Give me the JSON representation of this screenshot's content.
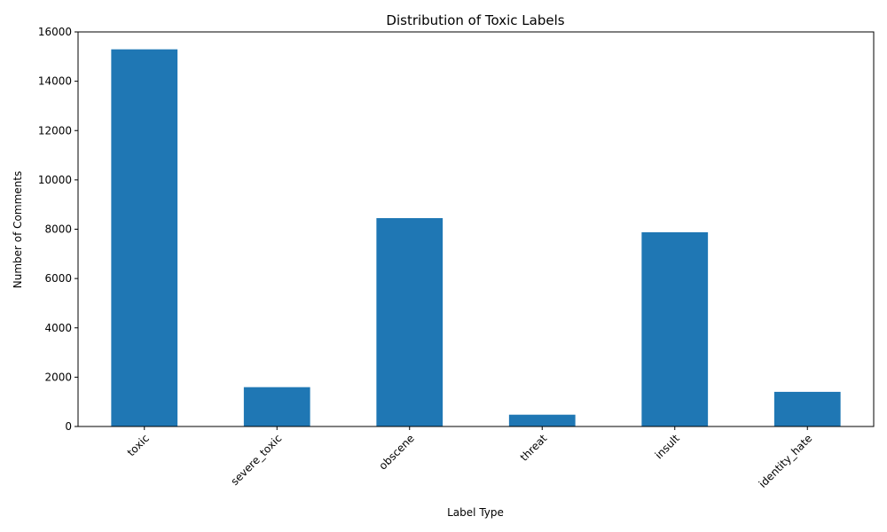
{
  "chart_data": {
    "type": "bar",
    "title": "Distribution of Toxic Labels",
    "xlabel": "Label Type",
    "ylabel": "Number of Comments",
    "categories": [
      "toxic",
      "severe_toxic",
      "obscene",
      "threat",
      "insult",
      "identity_hate"
    ],
    "values": [
      15294,
      1595,
      8449,
      478,
      7877,
      1405
    ],
    "ylim": [
      0,
      16000
    ],
    "yticks": [
      0,
      2000,
      4000,
      6000,
      8000,
      10000,
      12000,
      14000,
      16000
    ],
    "bar_color": "#1f77b4",
    "grid": false,
    "legend": "none"
  }
}
